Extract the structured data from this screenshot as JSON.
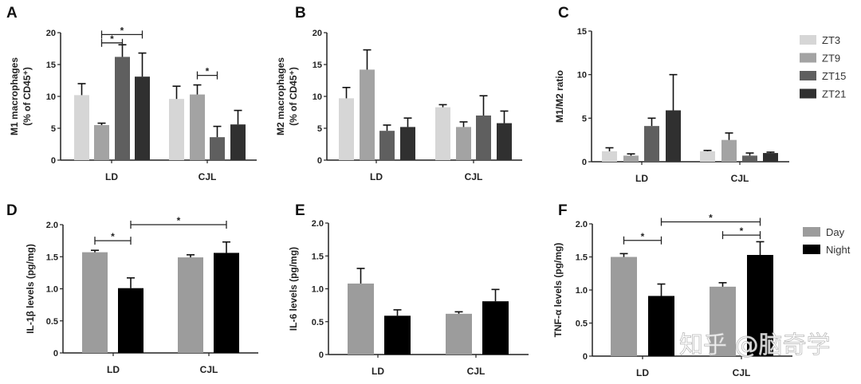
{
  "colors": {
    "ZT3": "#d6d6d6",
    "ZT9": "#a3a3a3",
    "ZT15": "#5f5f5f",
    "ZT21": "#303030",
    "Day": "#9c9c9c",
    "Night": "#000000",
    "axis": "#222222"
  },
  "watermark": "知乎 @脑奇学",
  "chart_data": [
    {
      "panel": "A",
      "type": "bar",
      "ylabel_line1": "M1 macrophages",
      "ylabel_line2": "(% of CD45⁺)",
      "categories": [
        "LD",
        "CJL"
      ],
      "ylim": [
        0,
        20
      ],
      "yticks": [
        "0",
        "5",
        "10",
        "15",
        "20"
      ],
      "series": [
        {
          "name": "ZT3",
          "values": [
            10.2,
            9.6
          ],
          "errors": [
            1.8,
            2.0
          ]
        },
        {
          "name": "ZT9",
          "values": [
            5.5,
            10.3
          ],
          "errors": [
            0.3,
            1.5
          ]
        },
        {
          "name": "ZT15",
          "values": [
            16.2,
            3.6
          ],
          "errors": [
            1.9,
            1.7
          ]
        },
        {
          "name": "ZT21",
          "values": [
            13.1,
            5.6
          ],
          "errors": [
            3.7,
            2.2
          ]
        }
      ],
      "significance": [
        {
          "from": "LD-ZT9",
          "to": "LD-ZT15",
          "label": "*",
          "y": 18.4
        },
        {
          "from": "LD-ZT9",
          "to": "LD-ZT21",
          "label": "*",
          "y": 19.7
        },
        {
          "from": "CJL-ZT9",
          "to": "CJL-ZT15",
          "label": "*",
          "y": 13.3
        }
      ]
    },
    {
      "panel": "B",
      "type": "bar",
      "ylabel_line1": "M2 macrophages",
      "ylabel_line2": "(% of CD45⁺)",
      "categories": [
        "LD",
        "CJL"
      ],
      "ylim": [
        0,
        20
      ],
      "yticks": [
        "0",
        "5",
        "10",
        "15",
        "20"
      ],
      "series": [
        {
          "name": "ZT3",
          "values": [
            9.7,
            8.3
          ],
          "errors": [
            1.7,
            0.4
          ]
        },
        {
          "name": "ZT9",
          "values": [
            14.2,
            5.2
          ],
          "errors": [
            3.1,
            0.8
          ]
        },
        {
          "name": "ZT15",
          "values": [
            4.6,
            7.0
          ],
          "errors": [
            0.9,
            3.1
          ]
        },
        {
          "name": "ZT21",
          "values": [
            5.2,
            5.8
          ],
          "errors": [
            1.4,
            1.9
          ]
        }
      ],
      "significance": []
    },
    {
      "panel": "C",
      "type": "bar",
      "ylabel_line1": "M1/M2 ratio",
      "ylabel_line2": "",
      "categories": [
        "LD",
        "CJL"
      ],
      "ylim": [
        0,
        15
      ],
      "yticks": [
        "0",
        "5",
        "10",
        "15"
      ],
      "series": [
        {
          "name": "ZT3",
          "values": [
            1.2,
            1.2
          ],
          "errors": [
            0.4,
            0.1
          ]
        },
        {
          "name": "ZT9",
          "values": [
            0.7,
            2.5
          ],
          "errors": [
            0.2,
            0.8
          ]
        },
        {
          "name": "ZT15",
          "values": [
            4.1,
            0.7
          ],
          "errors": [
            0.9,
            0.3
          ]
        },
        {
          "name": "ZT21",
          "values": [
            5.9,
            1.0
          ],
          "errors": [
            4.1,
            0.1
          ]
        }
      ],
      "legend": [
        "ZT3",
        "ZT9",
        "ZT15",
        "ZT21"
      ],
      "legend_position": "right",
      "significance": []
    },
    {
      "panel": "D",
      "type": "bar",
      "ylabel_line1": "IL-1β levels (pg/mg)",
      "ylabel_line2": "",
      "categories": [
        "LD",
        "CJL"
      ],
      "ylim": [
        0,
        2.0
      ],
      "yticks": [
        "0",
        "0.5",
        "1.0",
        "1.5",
        "2.0"
      ],
      "series": [
        {
          "name": "Day",
          "values": [
            1.57,
            1.49
          ],
          "errors": [
            0.03,
            0.04
          ]
        },
        {
          "name": "Night",
          "values": [
            1.01,
            1.56
          ],
          "errors": [
            0.16,
            0.17
          ]
        }
      ],
      "significance": [
        {
          "from": "LD-Day",
          "to": "LD-Night",
          "label": "*",
          "y": 1.75
        },
        {
          "from": "LD-Night",
          "to": "CJL-Night",
          "label": "*",
          "y": 2.0
        }
      ]
    },
    {
      "panel": "E",
      "type": "bar",
      "ylabel_line1": "IL-6 levels (pg/mg)",
      "ylabel_line2": "",
      "categories": [
        "LD",
        "CJL"
      ],
      "ylim": [
        0,
        2.0
      ],
      "yticks": [
        "0",
        "0.5",
        "1.0",
        "1.5",
        "2.0"
      ],
      "series": [
        {
          "name": "Day",
          "values": [
            1.08,
            0.62
          ],
          "errors": [
            0.23,
            0.03
          ]
        },
        {
          "name": "Night",
          "values": [
            0.59,
            0.81
          ],
          "errors": [
            0.09,
            0.18
          ]
        }
      ],
      "significance": []
    },
    {
      "panel": "F",
      "type": "bar",
      "ylabel_line1": "TNF-α levels (pg/mg)",
      "ylabel_line2": "",
      "categories": [
        "LD",
        "CJL"
      ],
      "ylim": [
        0,
        2.0
      ],
      "yticks": [
        "0",
        "0.5",
        "1.0",
        "1.5",
        "2.0"
      ],
      "series": [
        {
          "name": "Day",
          "values": [
            1.5,
            1.05
          ],
          "errors": [
            0.05,
            0.06
          ]
        },
        {
          "name": "Night",
          "values": [
            0.91,
            1.53
          ],
          "errors": [
            0.18,
            0.2
          ]
        }
      ],
      "legend": [
        "Day",
        "Night"
      ],
      "legend_position": "right",
      "significance": [
        {
          "from": "LD-Day",
          "to": "LD-Night",
          "label": "*",
          "y": 1.75
        },
        {
          "from": "LD-Night",
          "to": "CJL-Night",
          "label": "*",
          "y": 2.03
        },
        {
          "from": "CJL-Day",
          "to": "CJL-Night",
          "label": "*",
          "y": 1.83
        }
      ]
    }
  ]
}
